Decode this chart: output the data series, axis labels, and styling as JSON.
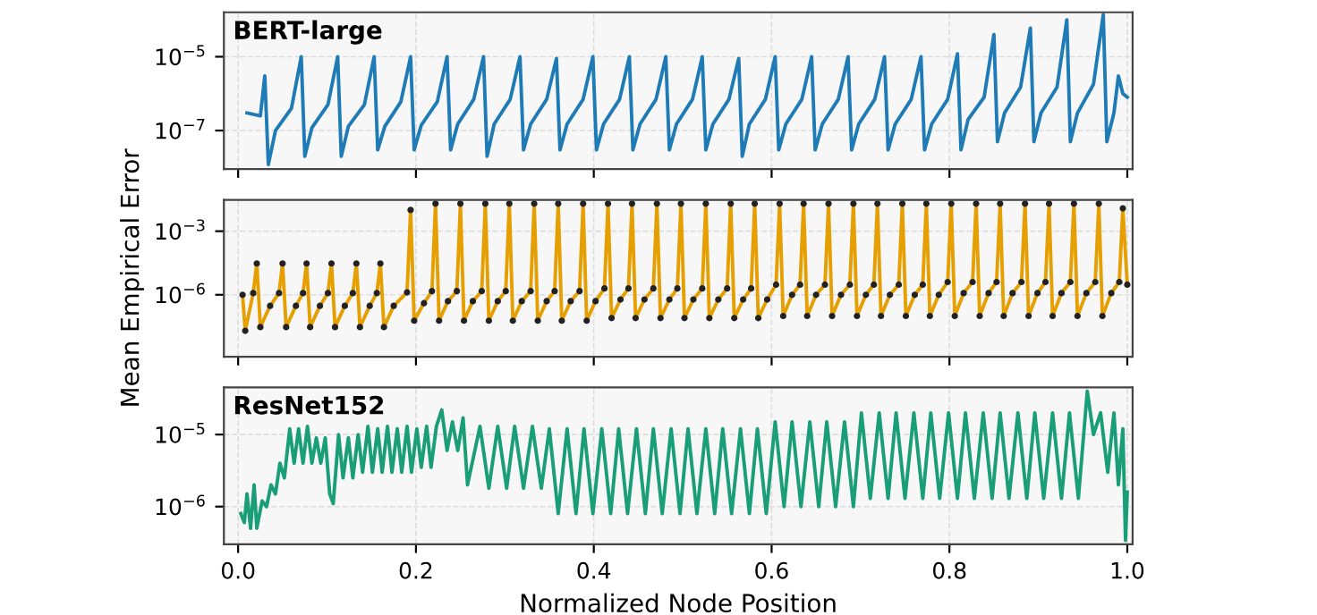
{
  "chart_data": [
    {
      "type": "line",
      "title": "BERT-large",
      "xlim": [
        -0.016,
        1.006
      ],
      "ylim": [
        9e-09,
        0.00016
      ],
      "log": "y",
      "grid": true,
      "tick_labels": "y",
      "marker": "none",
      "line_style": "solid",
      "xticks": [
        {
          "value": 0,
          "label": null
        },
        {
          "value": 0.2,
          "label": null
        },
        {
          "value": 0.4,
          "label": null
        },
        {
          "value": 0.6,
          "label": null
        },
        {
          "value": 0.8,
          "label": null
        },
        {
          "value": 1.0,
          "label": null
        }
      ],
      "yticks": [
        {
          "value": 1e-07,
          "label": "10$^{−7}$"
        },
        {
          "value": 1e-05,
          "label": "10$^{−5}$"
        }
      ],
      "series": [
        {
          "color": "#1f7bb6",
          "x": [
            0.01,
            0.025,
            0.03,
            0.034,
            0.042,
            0.06,
            0.071,
            0.075,
            0.083,
            0.101,
            0.112,
            0.116,
            0.124,
            0.142,
            0.153,
            0.157,
            0.165,
            0.183,
            0.194,
            0.198,
            0.206,
            0.224,
            0.235,
            0.239,
            0.247,
            0.265,
            0.276,
            0.28,
            0.288,
            0.306,
            0.317,
            0.321,
            0.329,
            0.347,
            0.358,
            0.362,
            0.37,
            0.388,
            0.399,
            0.403,
            0.411,
            0.429,
            0.44,
            0.444,
            0.452,
            0.47,
            0.481,
            0.485,
            0.493,
            0.511,
            0.522,
            0.526,
            0.534,
            0.552,
            0.563,
            0.567,
            0.575,
            0.593,
            0.604,
            0.608,
            0.616,
            0.634,
            0.645,
            0.649,
            0.657,
            0.675,
            0.686,
            0.69,
            0.698,
            0.716,
            0.727,
            0.731,
            0.739,
            0.757,
            0.768,
            0.772,
            0.78,
            0.798,
            0.809,
            0.813,
            0.821,
            0.839,
            0.85,
            0.854,
            0.862,
            0.88,
            0.891,
            0.895,
            0.903,
            0.921,
            0.932,
            0.936,
            0.944,
            0.962,
            0.973,
            0.977,
            0.985,
            0.99,
            0.995,
            1.0
          ],
          "values": [
            3e-07,
            2.5e-07,
            3e-06,
            1.2e-08,
            1e-07,
            4e-07,
            1e-05,
            2e-08,
            1.2e-07,
            5e-07,
            1e-05,
            2e-08,
            1.3e-07,
            5e-07,
            1e-05,
            3e-08,
            1.3e-07,
            6e-07,
            1e-05,
            3e-08,
            1.4e-07,
            6e-07,
            1e-05,
            3e-08,
            1.5e-07,
            7e-07,
            1e-05,
            2e-08,
            1.5e-07,
            7e-07,
            1e-05,
            3e-08,
            1.5e-07,
            7e-07,
            9e-06,
            3e-08,
            1.5e-07,
            7e-07,
            1e-05,
            3e-08,
            1.5e-07,
            7e-07,
            1e-05,
            3e-08,
            1.5e-07,
            7e-07,
            1e-05,
            3e-08,
            1.5e-07,
            7e-07,
            1e-05,
            3e-08,
            1.5e-07,
            7e-07,
            9e-06,
            2e-08,
            1.5e-07,
            7e-07,
            1e-05,
            3e-08,
            1.5e-07,
            7e-07,
            1e-05,
            3e-08,
            1.5e-07,
            7e-07,
            1e-05,
            3e-08,
            1.5e-07,
            7e-07,
            1e-05,
            3e-08,
            1.5e-07,
            7e-07,
            1e-05,
            3e-08,
            1.5e-07,
            7e-07,
            1.2e-05,
            3e-08,
            2e-07,
            8e-07,
            4e-05,
            5e-08,
            3e-07,
            1.5e-06,
            6e-05,
            5e-08,
            3e-07,
            1.5e-06,
            0.0001,
            5e-08,
            3e-07,
            1.8e-06,
            0.00014,
            5e-08,
            3e-07,
            3e-06,
            1e-06,
            8e-07
          ]
        }
      ]
    },
    {
      "type": "line",
      "xlim": [
        -0.016,
        1.006
      ],
      "ylim": [
        1.2e-09,
        0.03
      ],
      "log": "y",
      "grid": true,
      "tick_labels": "y",
      "marker": "circle",
      "line_style": "solid",
      "ylabel": "Mean Empirical Error",
      "xticks": [
        {
          "value": 0,
          "label": null
        },
        {
          "value": 0.2,
          "label": null
        },
        {
          "value": 0.4,
          "label": null
        },
        {
          "value": 0.6,
          "label": null
        },
        {
          "value": 0.8,
          "label": null
        },
        {
          "value": 1.0,
          "label": null
        }
      ],
      "yticks": [
        {
          "value": 1e-06,
          "label": "10$^{−6}$"
        },
        {
          "value": 0.001,
          "label": "10$^{−3}$"
        }
      ],
      "series": [
        {
          "color": "#e69f00",
          "x": [
            0.005,
            0.008,
            0.017,
            0.021,
            0.025,
            0.036,
            0.046,
            0.05,
            0.054,
            0.065,
            0.073,
            0.077,
            0.081,
            0.092,
            0.101,
            0.105,
            0.109,
            0.12,
            0.129,
            0.133,
            0.137,
            0.148,
            0.156,
            0.16,
            0.164,
            0.175,
            0.19,
            0.194,
            0.198,
            0.209,
            0.218,
            0.222,
            0.226,
            0.236,
            0.246,
            0.25,
            0.254,
            0.264,
            0.274,
            0.278,
            0.282,
            0.292,
            0.301,
            0.305,
            0.309,
            0.319,
            0.329,
            0.333,
            0.337,
            0.347,
            0.356,
            0.36,
            0.364,
            0.374,
            0.384,
            0.388,
            0.392,
            0.402,
            0.412,
            0.416,
            0.42,
            0.43,
            0.439,
            0.443,
            0.447,
            0.457,
            0.467,
            0.471,
            0.475,
            0.485,
            0.494,
            0.498,
            0.502,
            0.512,
            0.522,
            0.526,
            0.53,
            0.54,
            0.55,
            0.554,
            0.558,
            0.568,
            0.577,
            0.581,
            0.585,
            0.595,
            0.605,
            0.609,
            0.613,
            0.623,
            0.632,
            0.636,
            0.64,
            0.65,
            0.66,
            0.664,
            0.668,
            0.678,
            0.688,
            0.692,
            0.696,
            0.706,
            0.715,
            0.719,
            0.723,
            0.733,
            0.743,
            0.747,
            0.751,
            0.761,
            0.77,
            0.774,
            0.778,
            0.788,
            0.798,
            0.802,
            0.806,
            0.816,
            0.826,
            0.83,
            0.834,
            0.844,
            0.853,
            0.857,
            0.861,
            0.871,
            0.881,
            0.885,
            0.889,
            0.899,
            0.908,
            0.912,
            0.916,
            0.926,
            0.936,
            0.94,
            0.944,
            0.954,
            0.964,
            0.968,
            0.972,
            0.982,
            0.991,
            0.995,
            1.0
          ],
          "values": [
            1e-06,
            2e-08,
            1.2e-06,
            3e-05,
            3e-08,
            3e-07,
            1.2e-06,
            3e-05,
            3e-08,
            3e-07,
            1.2e-06,
            3e-05,
            3e-08,
            3e-07,
            1.2e-06,
            3e-05,
            3e-08,
            3e-07,
            1.2e-06,
            3e-05,
            3e-08,
            3e-07,
            1.2e-06,
            3e-05,
            3e-08,
            3e-07,
            1.3e-06,
            0.01,
            6e-08,
            4e-07,
            1.5e-06,
            0.02,
            6e-08,
            5e-07,
            1.5e-06,
            0.02,
            6e-08,
            5e-07,
            1.5e-06,
            0.02,
            6e-08,
            5e-07,
            1.5e-06,
            0.02,
            6e-08,
            5e-07,
            1.5e-06,
            0.02,
            6e-08,
            5e-07,
            1.5e-06,
            0.02,
            6e-08,
            5e-07,
            1.5e-06,
            0.02,
            6e-08,
            5e-07,
            2e-06,
            0.02,
            8e-08,
            6e-07,
            2e-06,
            0.02,
            8e-08,
            6e-07,
            2e-06,
            0.02,
            8e-08,
            6e-07,
            2e-06,
            0.02,
            8e-08,
            6e-07,
            2e-06,
            0.02,
            8e-08,
            6e-07,
            2e-06,
            0.02,
            8e-08,
            6e-07,
            2e-06,
            0.02,
            8e-08,
            6e-07,
            3e-06,
            0.02,
            1e-07,
            1e-06,
            3e-06,
            0.02,
            1e-07,
            1e-06,
            3e-06,
            0.02,
            1e-07,
            1e-06,
            3e-06,
            0.02,
            1e-07,
            1e-06,
            3e-06,
            0.02,
            1e-07,
            1e-06,
            3e-06,
            0.02,
            1e-07,
            1e-06,
            3e-06,
            0.02,
            1e-07,
            1e-06,
            4e-06,
            0.02,
            1e-07,
            1.2e-06,
            4e-06,
            0.02,
            1e-07,
            1.2e-06,
            4e-06,
            0.02,
            1e-07,
            1.2e-06,
            4e-06,
            0.02,
            1e-07,
            1.2e-06,
            4e-06,
            0.02,
            1e-07,
            1.2e-06,
            4e-06,
            0.02,
            1e-07,
            1.2e-06,
            4e-06,
            0.02,
            1e-07,
            1.2e-06,
            4e-06,
            0.012,
            3e-06
          ]
        }
      ]
    },
    {
      "type": "line",
      "title": "ResNet152",
      "xlim": [
        -0.016,
        1.006
      ],
      "ylim": [
        3e-07,
        4.5e-05
      ],
      "log": "y",
      "grid": true,
      "marker": "none",
      "line_style": "solid",
      "xlabel": "Normalized Node Position",
      "xticks": [
        {
          "value": 0,
          "label": "0.0"
        },
        {
          "value": 0.2,
          "label": "0.2"
        },
        {
          "value": 0.4,
          "label": "0.4"
        },
        {
          "value": 0.6,
          "label": "0.6"
        },
        {
          "value": 0.8,
          "label": "0.8"
        },
        {
          "value": 1.0,
          "label": "1.0"
        }
      ],
      "yticks": [
        {
          "value": 1e-06,
          "label": "10$^{−6}$"
        },
        {
          "value": 1e-05,
          "label": "10$^{−5}$"
        }
      ],
      "series": [
        {
          "color": "#1a9e77",
          "x": [
            0.003,
            0.007,
            0.01,
            0.014,
            0.018,
            0.021,
            0.027,
            0.032,
            0.037,
            0.042,
            0.047,
            0.052,
            0.058,
            0.063,
            0.068,
            0.073,
            0.078,
            0.083,
            0.088,
            0.093,
            0.098,
            0.103,
            0.107,
            0.113,
            0.118,
            0.124,
            0.129,
            0.135,
            0.14,
            0.146,
            0.151,
            0.157,
            0.162,
            0.168,
            0.173,
            0.179,
            0.184,
            0.19,
            0.195,
            0.201,
            0.206,
            0.212,
            0.217,
            0.223,
            0.229,
            0.235,
            0.241,
            0.247,
            0.253,
            0.258,
            0.272,
            0.282,
            0.292,
            0.302,
            0.311,
            0.321,
            0.331,
            0.341,
            0.35,
            0.36,
            0.37,
            0.38,
            0.389,
            0.399,
            0.409,
            0.419,
            0.428,
            0.438,
            0.448,
            0.458,
            0.467,
            0.477,
            0.487,
            0.497,
            0.506,
            0.516,
            0.526,
            0.536,
            0.545,
            0.555,
            0.565,
            0.575,
            0.584,
            0.594,
            0.604,
            0.614,
            0.623,
            0.633,
            0.643,
            0.653,
            0.662,
            0.672,
            0.682,
            0.692,
            0.701,
            0.711,
            0.721,
            0.731,
            0.74,
            0.75,
            0.76,
            0.77,
            0.779,
            0.789,
            0.799,
            0.809,
            0.818,
            0.828,
            0.838,
            0.848,
            0.857,
            0.867,
            0.877,
            0.887,
            0.896,
            0.906,
            0.916,
            0.926,
            0.935,
            0.945,
            0.955,
            0.962,
            0.97,
            0.978,
            0.985,
            0.99,
            0.995,
            0.998,
            1.0
          ],
          "values": [
            8e-07,
            6e-07,
            1.5e-06,
            5e-07,
            2e-06,
            5e-07,
            1.2e-06,
            1e-06,
            2e-06,
            1.5e-06,
            4e-06,
            2.5e-06,
            1.2e-05,
            4e-06,
            1.2e-05,
            4e-06,
            1.3e-05,
            4e-06,
            9e-06,
            4e-06,
            9e-06,
            1.5e-06,
            1.1e-06,
            1e-05,
            2.5e-06,
            9e-06,
            2.5e-06,
            1e-05,
            3e-06,
            1.3e-05,
            3e-06,
            1.2e-05,
            3e-06,
            1.3e-05,
            3e-06,
            1.2e-05,
            3e-06,
            1.3e-05,
            3e-06,
            1.2e-05,
            3.5e-06,
            1.3e-05,
            3.5e-06,
            1.3e-05,
            2.2e-05,
            6e-06,
            1.5e-05,
            6e-06,
            1.7e-05,
            2e-06,
            1.3e-05,
            1.8e-06,
            1.3e-05,
            1.8e-06,
            1.3e-05,
            1.8e-06,
            1.3e-05,
            1.8e-06,
            1.2e-05,
            8e-07,
            1.2e-05,
            8e-07,
            1.2e-05,
            8e-07,
            1.2e-05,
            8e-07,
            1.2e-05,
            8e-07,
            1.2e-05,
            8e-07,
            1.2e-05,
            8e-07,
            1.2e-05,
            8e-07,
            1.2e-05,
            8e-07,
            1.2e-05,
            8e-07,
            1.2e-05,
            8e-07,
            1.2e-05,
            8e-07,
            1.2e-05,
            8e-07,
            1.5e-05,
            1e-06,
            1.5e-05,
            1e-06,
            1.5e-05,
            1e-06,
            1.5e-05,
            1e-06,
            1.5e-05,
            1e-06,
            2e-05,
            1.3e-06,
            2e-05,
            1.3e-06,
            2e-05,
            1.3e-06,
            2e-05,
            1.3e-06,
            2e-05,
            1.3e-06,
            2e-05,
            1.3e-06,
            2e-05,
            1.3e-06,
            2e-05,
            1.3e-06,
            2e-05,
            1.3e-06,
            2e-05,
            1.3e-06,
            2e-05,
            1.3e-06,
            2e-05,
            1.3e-06,
            2e-05,
            1.3e-06,
            4e-05,
            1e-05,
            2e-05,
            3e-06,
            2e-05,
            2e-06,
            1.2e-05,
            3.4e-07,
            1.6e-06
          ]
        }
      ]
    }
  ]
}
